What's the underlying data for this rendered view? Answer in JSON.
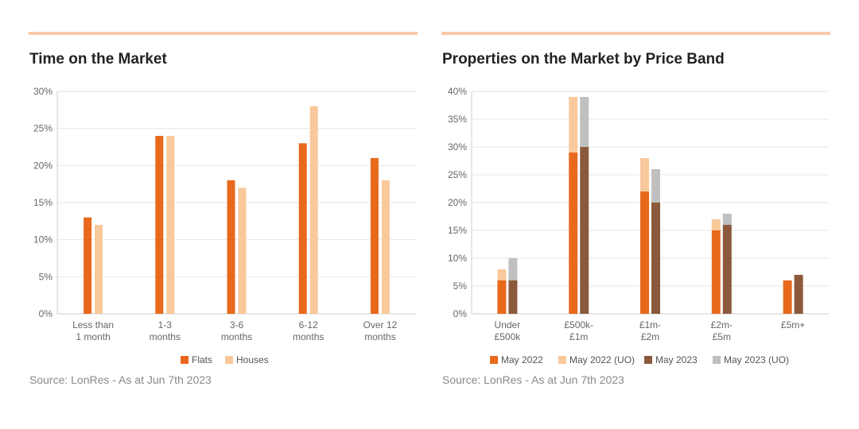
{
  "colors": {
    "flats": "#e8691c",
    "houses": "#f9c99b",
    "may2022": "#e8691c",
    "may2022_uo": "#f9c99b",
    "may2023": "#8b5a3c",
    "may2023_uo": "#c0c0c0",
    "rule": "#f6c8a8",
    "grid": "#e6e6e6"
  },
  "source_text": "Source: LonRes - As at Jun 7th 2023",
  "chart_data": [
    {
      "type": "bar",
      "title": "Time on the Market",
      "categories": [
        [
          "Less than",
          "1 month"
        ],
        [
          "1-3",
          "months"
        ],
        [
          "3-6",
          "months"
        ],
        [
          "6-12",
          "months"
        ],
        [
          "Over 12",
          "months"
        ]
      ],
      "series": [
        {
          "name": "Flats",
          "values": [
            13,
            24,
            18,
            23,
            21
          ]
        },
        {
          "name": "Houses",
          "values": [
            12,
            24,
            17,
            28,
            18
          ]
        }
      ],
      "ylim": [
        0,
        30
      ],
      "yticks": [
        "0%",
        "5%",
        "10%",
        "15%",
        "20%",
        "25%",
        "30%"
      ],
      "legend": "bottom",
      "grid": true
    },
    {
      "type": "bar",
      "stacked": true,
      "title": "Properties on the Market by Price Band",
      "categories": [
        [
          "Under",
          "£500k"
        ],
        [
          "£500k-",
          "£1m"
        ],
        [
          "£1m-",
          "£2m"
        ],
        [
          "£2m-",
          "£5m"
        ],
        [
          "£5m+"
        ]
      ],
      "series": [
        {
          "name": "May 2022",
          "stack": "2022",
          "values": [
            6,
            29,
            22,
            15,
            6
          ]
        },
        {
          "name": "May 2022 (UO)",
          "stack": "2022",
          "values": [
            2,
            10,
            6,
            2,
            0
          ]
        },
        {
          "name": "May 2023",
          "stack": "2023",
          "values": [
            6,
            30,
            20,
            16,
            7
          ]
        },
        {
          "name": "May 2023 (UO)",
          "stack": "2023",
          "values": [
            4,
            9,
            6,
            2,
            0
          ]
        }
      ],
      "ylim": [
        0,
        40
      ],
      "yticks": [
        "0%",
        "5%",
        "10%",
        "15%",
        "20%",
        "25%",
        "30%",
        "35%",
        "40%"
      ],
      "legend": "bottom",
      "grid": true
    }
  ]
}
